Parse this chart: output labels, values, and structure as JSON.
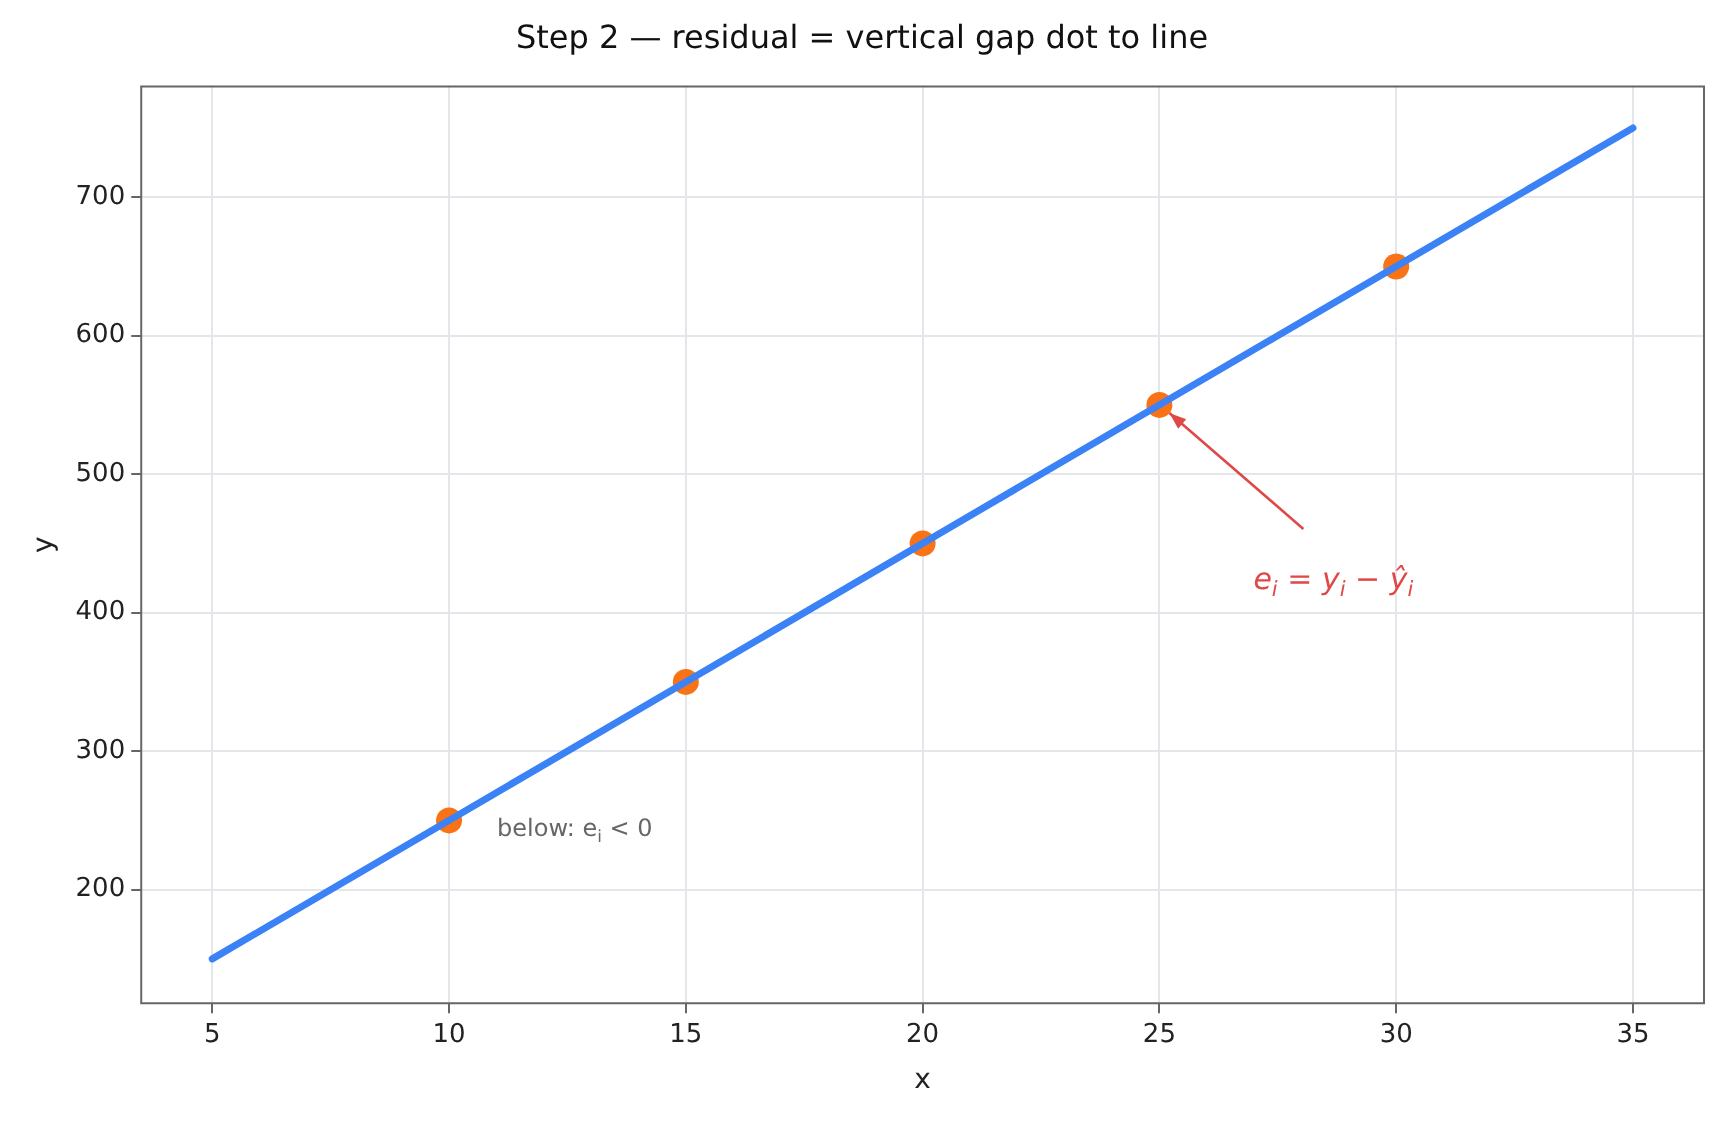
{
  "chart_data": {
    "type": "scatter",
    "title": "Step 2 — residual = vertical gap dot to line",
    "xlabel": "x",
    "ylabel": "y",
    "series": [
      {
        "type": "line",
        "color": "#3b82f6",
        "x": [
          5,
          35
        ],
        "values": [
          150,
          750
        ],
        "marker": "none"
      },
      {
        "type": "scatter",
        "color": "#f97316",
        "x": [
          10,
          15,
          20,
          25,
          30
        ],
        "values": [
          250,
          350,
          450,
          550,
          650
        ],
        "marker": "circle"
      }
    ],
    "xlim": [
      3.5,
      36.5
    ],
    "ylim": [
      118,
      780
    ],
    "xticks": [
      5,
      10,
      15,
      20,
      25,
      30,
      35
    ],
    "yticks": [
      200,
      300,
      400,
      500,
      600,
      700
    ],
    "grid": true,
    "legend": false,
    "annotations": [
      {
        "text": "e$_{i}$ = y$_{i}$ − ŷ$_{i}$",
        "x": 25,
        "y": 550
      },
      {
        "text": "below: e$_{i}$ < 0",
        "x": 10,
        "y": 250
      }
    ]
  }
}
